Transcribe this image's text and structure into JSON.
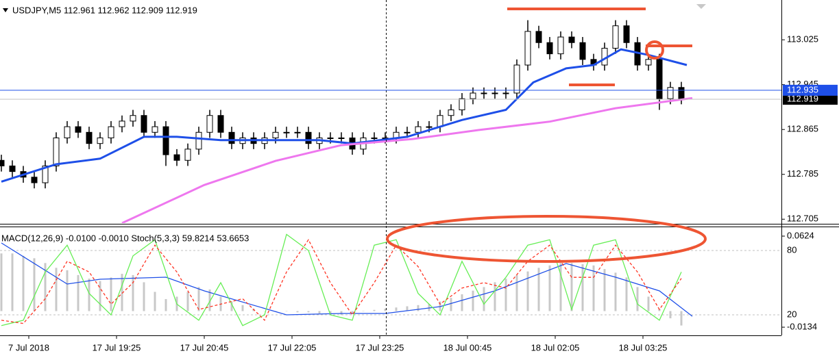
{
  "chart_data": [
    {
      "type": "candlestick",
      "title": "USDJPY,M5  112.961 112.962 112.909 112.919",
      "color_up": "#ffffff",
      "color_down": "#000000",
      "xlim": [
        -0.125,
        71.125
      ],
      "ylim": [
        112.698,
        113.096
      ],
      "yticks": [
        113.025,
        112.945,
        112.865,
        112.785,
        112.705
      ],
      "open": [
        112.81,
        112.8,
        112.79,
        112.78,
        112.77,
        112.8,
        112.85,
        112.87,
        112.86,
        112.84,
        112.85,
        112.87,
        112.88,
        112.89,
        112.86,
        112.87,
        112.82,
        112.81,
        112.83,
        112.86,
        112.89,
        112.86,
        112.84,
        112.85,
        112.84,
        112.85,
        112.86,
        112.86,
        112.86,
        112.84,
        112.85,
        112.85,
        112.85,
        112.83,
        112.85,
        112.85,
        112.85,
        112.86,
        112.86,
        112.87,
        112.87,
        112.89,
        112.9,
        112.92,
        112.93,
        112.93,
        112.93,
        112.93,
        112.98,
        113.04,
        113.02,
        113.0,
        113.03,
        113.02,
        112.99,
        112.98,
        113.01,
        113.05,
        113.02,
        112.98,
        112.99,
        112.92,
        112.94
      ],
      "high": [
        112.82,
        112.81,
        112.8,
        112.79,
        112.81,
        112.86,
        112.88,
        112.88,
        112.87,
        112.86,
        112.88,
        112.89,
        112.9,
        112.9,
        112.88,
        112.88,
        112.83,
        112.84,
        112.87,
        112.9,
        112.9,
        112.87,
        112.86,
        112.86,
        112.86,
        112.87,
        112.87,
        112.87,
        112.87,
        112.86,
        112.86,
        112.86,
        112.86,
        112.86,
        112.86,
        112.86,
        112.87,
        112.87,
        112.88,
        112.88,
        112.9,
        112.91,
        112.93,
        112.94,
        112.94,
        112.94,
        112.94,
        112.99,
        113.06,
        113.05,
        113.03,
        113.04,
        113.04,
        113.03,
        113.0,
        113.02,
        113.06,
        113.06,
        113.03,
        113.0,
        113.0,
        112.95,
        112.95
      ],
      "low": [
        112.79,
        112.78,
        112.77,
        112.76,
        112.76,
        112.79,
        112.84,
        112.85,
        112.83,
        112.83,
        112.84,
        112.86,
        112.87,
        112.85,
        112.85,
        112.8,
        112.8,
        112.8,
        112.82,
        112.85,
        112.85,
        112.83,
        112.83,
        112.83,
        112.83,
        112.84,
        112.85,
        112.85,
        112.83,
        112.83,
        112.84,
        112.84,
        112.82,
        112.82,
        112.84,
        112.84,
        112.84,
        112.85,
        112.85,
        112.86,
        112.86,
        112.88,
        112.89,
        112.91,
        112.92,
        112.92,
        112.92,
        112.92,
        112.97,
        113.01,
        112.99,
        112.99,
        113.01,
        112.98,
        112.97,
        112.97,
        113.0,
        113.01,
        112.97,
        112.97,
        112.9,
        112.91,
        112.91
      ],
      "close": [
        112.8,
        112.79,
        112.78,
        112.77,
        112.8,
        112.85,
        112.87,
        112.86,
        112.84,
        112.85,
        112.87,
        112.88,
        112.89,
        112.86,
        112.87,
        112.82,
        112.81,
        112.83,
        112.86,
        112.89,
        112.86,
        112.84,
        112.85,
        112.84,
        112.85,
        112.86,
        112.86,
        112.86,
        112.84,
        112.85,
        112.85,
        112.85,
        112.83,
        112.85,
        112.85,
        112.85,
        112.86,
        112.86,
        112.87,
        112.87,
        112.89,
        112.9,
        112.92,
        112.93,
        112.93,
        112.93,
        112.93,
        112.98,
        113.04,
        113.02,
        113.0,
        113.03,
        113.02,
        112.99,
        112.98,
        113.01,
        113.05,
        113.02,
        112.98,
        112.99,
        112.92,
        112.94,
        112.919
      ],
      "series": [
        {
          "color": "#1e4fe8",
          "x": [
            0,
            5,
            9,
            13,
            16,
            20,
            25,
            29,
            32,
            37,
            42,
            46,
            48.5,
            51.5,
            54,
            56.5,
            59,
            62.5
          ],
          "values": [
            112.772,
            112.803,
            112.813,
            112.852,
            112.852,
            112.846,
            112.846,
            112.846,
            112.84,
            112.852,
            112.882,
            112.9,
            112.949,
            112.974,
            112.98,
            113.008,
            112.998,
            112.98
          ]
        },
        {
          "color": "#ee77ee",
          "x": [
            11,
            18.5,
            25,
            31,
            37.5,
            43.5,
            50,
            56,
            63
          ],
          "values": [
            112.698,
            112.766,
            112.809,
            112.837,
            112.848,
            112.864,
            112.879,
            112.903,
            112.921
          ]
        }
      ],
      "ask_line": {
        "value": 112.935,
        "color": "#1e4fe8"
      },
      "bid_line": {
        "value": 112.919,
        "color": "#c0c0c0"
      }
    },
    {
      "type": "oscillator",
      "title": "MACD(12,26,9) -0.0100 -0.0010  Stoch(5,3,3) 59.8214 53.6653",
      "xlim": [
        -0.125,
        71.125
      ],
      "xticks": [
        {
          "value": 2.5,
          "label": "7 Jul 2018"
        },
        {
          "value": 10.5,
          "label": "17 Jul 19:25"
        },
        {
          "value": 18.5,
          "label": "17 Jul 20:45"
        },
        {
          "value": 26.5,
          "label": "17 Jul 22:05"
        },
        {
          "value": 34.5,
          "label": "17 Jul 23:25"
        },
        {
          "value": 42.5,
          "label": "18 Jul 00:45"
        },
        {
          "value": 50.5,
          "label": "18 Jul 02:05"
        },
        {
          "value": 58.5,
          "label": "18 Jul 03:25"
        }
      ],
      "ylim": [
        -0.0202,
        0.0698
      ],
      "yticks": [
        0.0624,
        -0.0134
      ],
      "y2lim": [
        0.9,
        101.7
      ],
      "y2ticks": [
        80,
        20
      ],
      "histogram": {
        "color": "#c8c8c8",
        "values": [
          0.048,
          0.048,
          0.046,
          0.044,
          0.04,
          0.036,
          0.034,
          0.03,
          0.027,
          0.025,
          0.028,
          0.031,
          0.03,
          0.024,
          0.016,
          0.01,
          0.012,
          0.016,
          0.02,
          0.018,
          0.012,
          0.008,
          0.005,
          0.002,
          0.0,
          0.0,
          0.0,
          -0.001,
          -0.001,
          -0.002,
          -0.003,
          -0.003,
          -0.002,
          0.0,
          0.001,
          0.002,
          0.003,
          0.004,
          0.005,
          0.006,
          0.008,
          0.011,
          0.014,
          0.017,
          0.02,
          0.024,
          0.027,
          0.03,
          0.033,
          0.036,
          0.038,
          0.04,
          0.04,
          0.039,
          0.038,
          0.035,
          0.032,
          0.028,
          0.02,
          0.012,
          0.002,
          -0.006,
          -0.012
        ]
      },
      "series": [
        {
          "color": "#1e4fe8",
          "x": [
            0,
            6,
            9,
            15,
            18.5,
            26,
            31,
            35,
            40,
            45,
            51.5,
            56,
            60,
            63
          ],
          "values": [
            0.0567,
            0.0225,
            0.0265,
            0.0282,
            0.0168,
            -0.0031,
            -0.002,
            -0.002,
            0.0037,
            0.0168,
            0.0396,
            0.0282,
            0.0168,
            -0.0043
          ]
        },
        {
          "color": "#66ee55",
          "axis": "y2",
          "x": [
            0,
            2,
            4,
            6,
            8,
            10,
            12,
            14,
            16,
            18,
            20,
            22,
            24,
            26,
            28,
            30,
            32,
            34,
            36,
            38,
            40,
            42,
            44,
            46,
            48,
            50,
            52,
            54,
            56,
            58,
            60,
            62
          ],
          "values": [
            10,
            15,
            60,
            85,
            40,
            20,
            75,
            90,
            30,
            15,
            50,
            10,
            20,
            95,
            80,
            20,
            15,
            85,
            90,
            40,
            20,
            70,
            30,
            55,
            85,
            90,
            25,
            85,
            90,
            30,
            15,
            60
          ]
        },
        {
          "color": "#ff3322",
          "axis": "y2",
          "dashed": true,
          "x": [
            0,
            2,
            4,
            6,
            8,
            10,
            12,
            14,
            16,
            18,
            20,
            22,
            24,
            26,
            28,
            30,
            32,
            34,
            36,
            38,
            40,
            42,
            44,
            46,
            48,
            50,
            52,
            54,
            56,
            58,
            60,
            62
          ],
          "values": [
            15,
            12,
            35,
            70,
            60,
            30,
            50,
            85,
            60,
            25,
            30,
            35,
            15,
            60,
            90,
            50,
            20,
            50,
            85,
            65,
            30,
            45,
            50,
            45,
            70,
            85,
            55,
            55,
            85,
            60,
            25,
            54
          ]
        }
      ]
    }
  ]
}
